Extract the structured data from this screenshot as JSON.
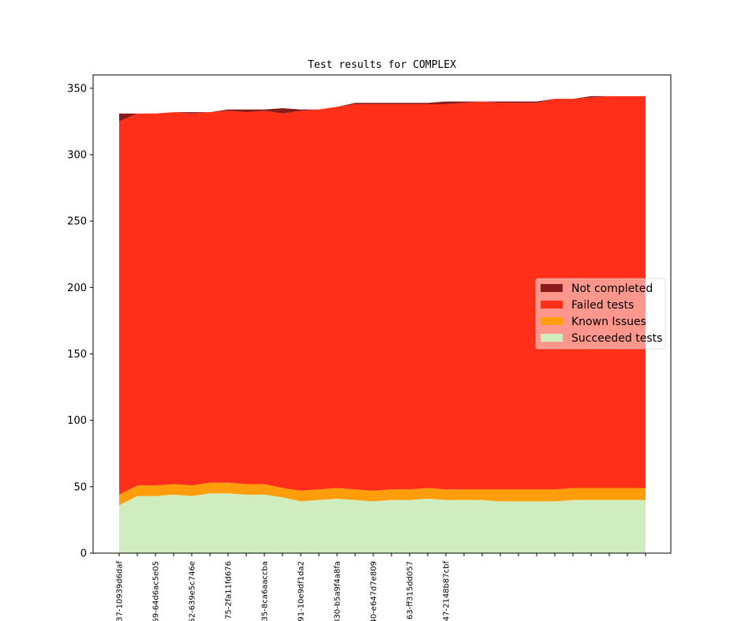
{
  "chart_data": {
    "type": "area",
    "title": "Test results for COMPLEX",
    "xlabel": "",
    "ylabel": "",
    "ylim": [
      0,
      360
    ],
    "yticks": [
      0,
      50,
      100,
      150,
      200,
      250,
      300,
      350
    ],
    "x_labels": [
      "37-10939d6daf",
      "69-64d6ac5e05",
      "52-639e5c746e",
      "75-2fa11fd676",
      "35-8ca6aaccba",
      "91-10e9df1da2",
      "830-b5a9f4a8fa",
      "40-e647d7e809",
      "63-ff315dd057",
      "47-2148b87cbf"
    ],
    "x_label_every": 2,
    "legend_position": "center-right",
    "grid": false,
    "stacked": true,
    "n_points": 30,
    "series": [
      {
        "name": "Succeeded tests",
        "color": "#d0edbf",
        "values": [
          36,
          43,
          43,
          44,
          43,
          45,
          45,
          44,
          44,
          42,
          39,
          40,
          41,
          40,
          39,
          40,
          40,
          41,
          40,
          40,
          40,
          39,
          39,
          39,
          39,
          40,
          40,
          40,
          40,
          40
        ]
      },
      {
        "name": "Known Issues",
        "color": "#ff9d0a",
        "values": [
          8,
          8,
          8,
          8,
          8,
          8,
          8,
          8,
          8,
          7,
          8,
          8,
          8,
          8,
          8,
          8,
          8,
          8,
          8,
          8,
          8,
          9,
          9,
          9,
          9,
          9,
          9,
          9,
          9,
          9
        ]
      },
      {
        "name": "Failed tests",
        "color": "#ff2f19",
        "values": [
          281,
          280,
          280,
          280,
          280,
          279,
          280,
          280,
          281,
          282,
          286,
          286,
          287,
          290,
          291,
          290,
          290,
          289,
          290,
          291,
          292,
          291,
          291,
          291,
          294,
          293,
          294,
          295,
          295,
          295
        ]
      },
      {
        "name": "Not completed",
        "color": "#8b1a1a",
        "values": [
          6,
          0,
          0,
          0,
          1,
          0,
          1,
          2,
          1,
          4,
          1,
          0,
          0,
          1,
          1,
          1,
          1,
          1,
          2,
          1,
          0,
          1,
          1,
          1,
          0,
          0,
          1,
          0,
          0,
          0
        ]
      }
    ]
  }
}
